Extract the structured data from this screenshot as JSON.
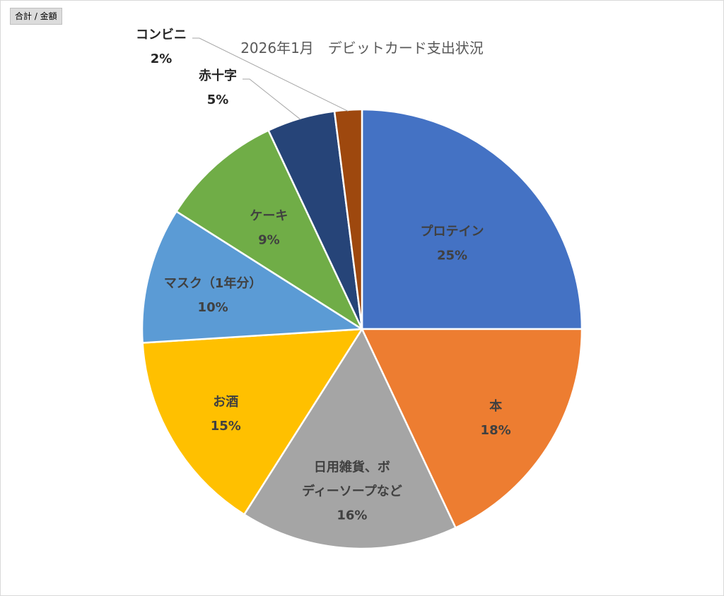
{
  "field_button": "合計 / 金額",
  "chart_data": {
    "type": "pie",
    "title": "2026年1月　デビットカード支出状況",
    "legend": "none",
    "slices": [
      {
        "category": "プロテイン",
        "label": [
          "プロテイン"
        ],
        "value": 25,
        "value_label": "25%",
        "color": "#4472C4"
      },
      {
        "category": "本",
        "label": [
          "本"
        ],
        "value": 18,
        "value_label": "18%",
        "color": "#ED7D31"
      },
      {
        "category": "日用雑貨、ボディーソープなど",
        "label": [
          "日用雑貨、ボ",
          "ディーソープなど"
        ],
        "value": 16,
        "value_label": "16%",
        "color": "#A5A5A5"
      },
      {
        "category": "お酒",
        "label": [
          "お酒"
        ],
        "value": 15,
        "value_label": "15%",
        "color": "#FFC000"
      },
      {
        "category": "マスク（1年分）",
        "label": [
          "マスク（1年分）"
        ],
        "value": 10,
        "value_label": "10%",
        "color": "#5B9BD5"
      },
      {
        "category": "ケーキ",
        "label": [
          "ケーキ"
        ],
        "value": 9,
        "value_label": "9%",
        "color": "#70AD47"
      },
      {
        "category": "赤十字",
        "label": [
          "赤十字"
        ],
        "value": 5,
        "value_label": "5%",
        "color": "#264478"
      },
      {
        "category": "コンビニ",
        "label": [
          "コンビニ"
        ],
        "value": 2,
        "value_label": "2%",
        "color": "#9E480E"
      }
    ]
  }
}
